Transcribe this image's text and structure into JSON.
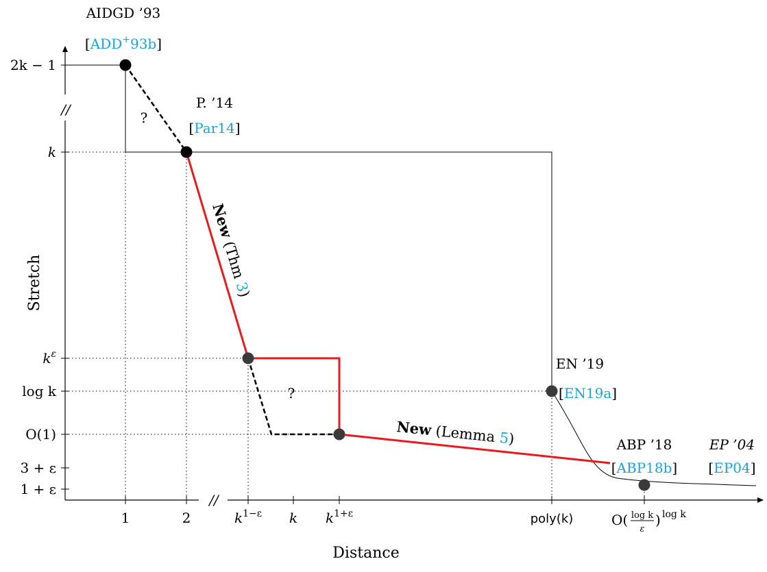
{
  "axes": {
    "x_label": "Distance",
    "y_label": "Stretch",
    "x_break": "//",
    "y_break": "//",
    "x_ticks": [
      {
        "base": "1"
      },
      {
        "base": "2"
      },
      {
        "base": "k",
        "sup": "1−ε"
      },
      {
        "base": "k"
      },
      {
        "base": "k",
        "sup": "1+ε"
      },
      {
        "base": "poly(k)"
      },
      {
        "base": "O(",
        "frac_num": "log k",
        "frac_den": "ε",
        "close": ")",
        "sup": "log k"
      }
    ],
    "y_ticks": [
      {
        "base": "2k − 1"
      },
      {
        "base": "k"
      },
      {
        "base": "k",
        "sup": "ε"
      },
      {
        "base": "log k"
      },
      {
        "base": "O(1)"
      },
      {
        "base": "3 + ε"
      },
      {
        "base": "1 + ε"
      }
    ]
  },
  "points": [
    {
      "name": "AIDGD",
      "label": "AIDGD ’93",
      "cite_open": "[",
      "cite_ref": "ADD",
      "cite_sup": "+",
      "cite_suffix": "93b",
      "cite_close": "]"
    },
    {
      "name": "P",
      "label": "P. ’14",
      "cite_open": "[",
      "cite_ref": "Par14",
      "cite_close": "]"
    },
    {
      "name": "EN",
      "label": "EN ’19",
      "cite_open": "[",
      "cite_ref": "EN19a",
      "cite_close": "]"
    },
    {
      "name": "ABP",
      "label": "ABP ’18",
      "cite_open": "[",
      "cite_ref": "ABP18b",
      "cite_close": "]"
    },
    {
      "name": "EP",
      "label": "EP ’04",
      "cite_open": "[",
      "cite_ref": "EP04",
      "cite_close": "]"
    }
  ],
  "annotations": {
    "new_thm_bold": "New",
    "new_thm_rest_open": " (Thm ",
    "new_thm_ref": "3",
    "new_thm_close": ")",
    "new_lemma_bold": "New",
    "new_lemma_rest_open": " (Lemma ",
    "new_lemma_ref": "5",
    "new_lemma_close": ")",
    "question_1": "?",
    "question_2": "?"
  },
  "colors": {
    "new_result": "#e8191c",
    "citation": "#1aa3d9",
    "point_dark": "#000000",
    "point_gray": "#3a3a3a"
  }
}
